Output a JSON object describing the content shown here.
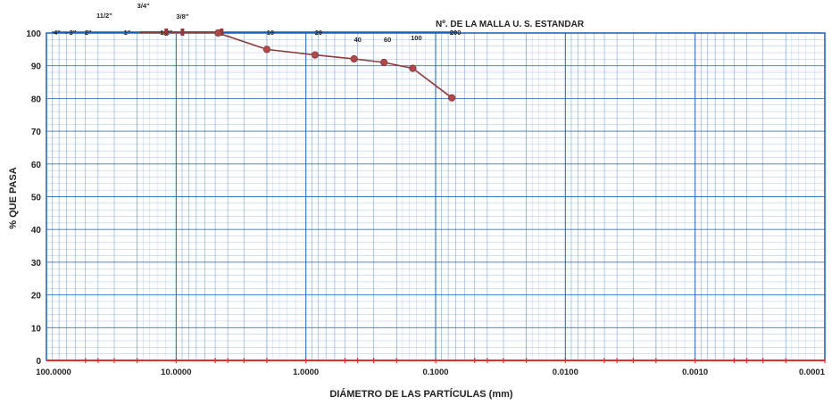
{
  "chart_data": {
    "type": "line",
    "title": "Nº. DE LA MALLA U. S. ESTANDAR",
    "xlabel": "DIÁMETRO DE LAS PARTÍCULAS (mm)",
    "ylabel": "% QUE PASA",
    "x_scale": "log",
    "x_reversed": true,
    "xlim": [
      100,
      0.0001
    ],
    "ylim": [
      0,
      100
    ],
    "grid": true,
    "x_ticks": [
      100,
      10,
      1,
      0.1,
      0.01,
      0.001,
      0.0001
    ],
    "x_tick_labels": [
      "100.0000",
      "10.0000",
      "1.0000",
      "0.1000",
      "0.0100",
      "0.0010",
      "0.0001"
    ],
    "y_ticks": [
      0,
      10,
      20,
      30,
      40,
      50,
      60,
      70,
      80,
      90,
      100
    ],
    "sieves": [
      {
        "label": "4\"",
        "size": 100
      },
      {
        "label": "- 3\"",
        "size": 76.2
      },
      {
        "label": "2\"",
        "size": 50.8
      },
      {
        "label": "11/2\"",
        "size": 38.1
      },
      {
        "label": "1\"",
        "size": 25.4
      },
      {
        "label": "3/4\"",
        "size": 19.05
      },
      {
        "label": "1/2\"",
        "size": 12.7
      },
      {
        "label": "3/8\"",
        "size": 9.525
      },
      {
        "label": "4",
        "size": 4.75
      },
      {
        "label": "10",
        "size": 2.0
      },
      {
        "label": "20",
        "size": 0.85
      },
      {
        "label": "40",
        "size": 0.425
      },
      {
        "label": "60",
        "size": 0.25
      },
      {
        "label": "100",
        "size": 0.15
      },
      {
        "label": "200",
        "size": 0.075
      }
    ],
    "series": [
      {
        "x": [
          4.75,
          2.0,
          0.85,
          0.425,
          0.25,
          0.15,
          0.075
        ],
        "y": [
          100,
          95,
          93.3,
          92.1,
          91,
          89.2,
          80.2
        ]
      }
    ],
    "colors": {
      "grid": "#1a5fb4",
      "frame": "#1a5fb4",
      "curve": "#8f3a3a",
      "marker": "#b04a4a",
      "axis_base": "#e03030"
    }
  }
}
